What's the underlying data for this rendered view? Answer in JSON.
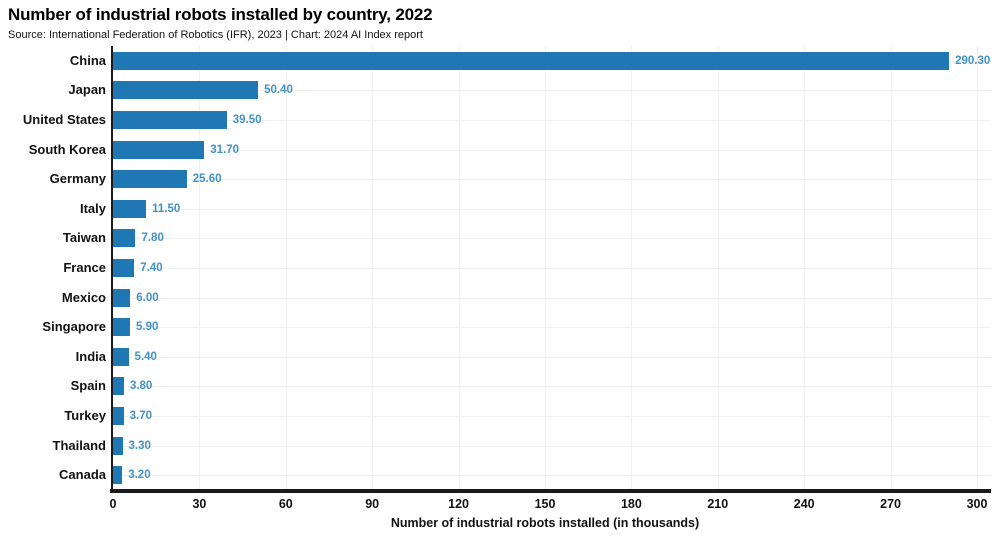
{
  "header": {
    "title": "Number of industrial robots installed by country, 2022",
    "source": "Source: International Federation of Robotics (IFR), 2023 | Chart: 2024 AI Index report"
  },
  "chart_data": {
    "type": "bar",
    "orientation": "horizontal",
    "title": "Number of industrial robots installed by country, 2022",
    "subtitle": "Source: International Federation of Robotics (IFR), 2023 | Chart: 2024 AI Index report",
    "categories": [
      "China",
      "Japan",
      "United States",
      "South Korea",
      "Germany",
      "Italy",
      "Taiwan",
      "France",
      "Mexico",
      "Singapore",
      "India",
      "Spain",
      "Turkey",
      "Thailand",
      "Canada"
    ],
    "values": [
      290.3,
      50.4,
      39.5,
      31.7,
      25.6,
      11.5,
      7.8,
      7.4,
      6.0,
      5.9,
      5.4,
      3.8,
      3.7,
      3.3,
      3.2
    ],
    "value_labels": [
      "290.30",
      "50.40",
      "39.50",
      "31.70",
      "25.60",
      "11.50",
      "7.80",
      "7.40",
      "6.00",
      "5.90",
      "5.40",
      "3.80",
      "3.70",
      "3.30",
      "3.20"
    ],
    "xlabel": "Number of industrial robots installed (in thousands)",
    "ylabel": "",
    "xticks": [
      0,
      30,
      60,
      90,
      120,
      150,
      180,
      210,
      240,
      270,
      300
    ],
    "xlim": [
      0,
      300
    ],
    "grid": true,
    "legend": "none",
    "colors": {
      "bar": "#1f77b4",
      "value_label": "#4292c6",
      "axis": "#1a1a1a",
      "gridline": "#f0f0f0",
      "label_text": "#111111"
    }
  }
}
